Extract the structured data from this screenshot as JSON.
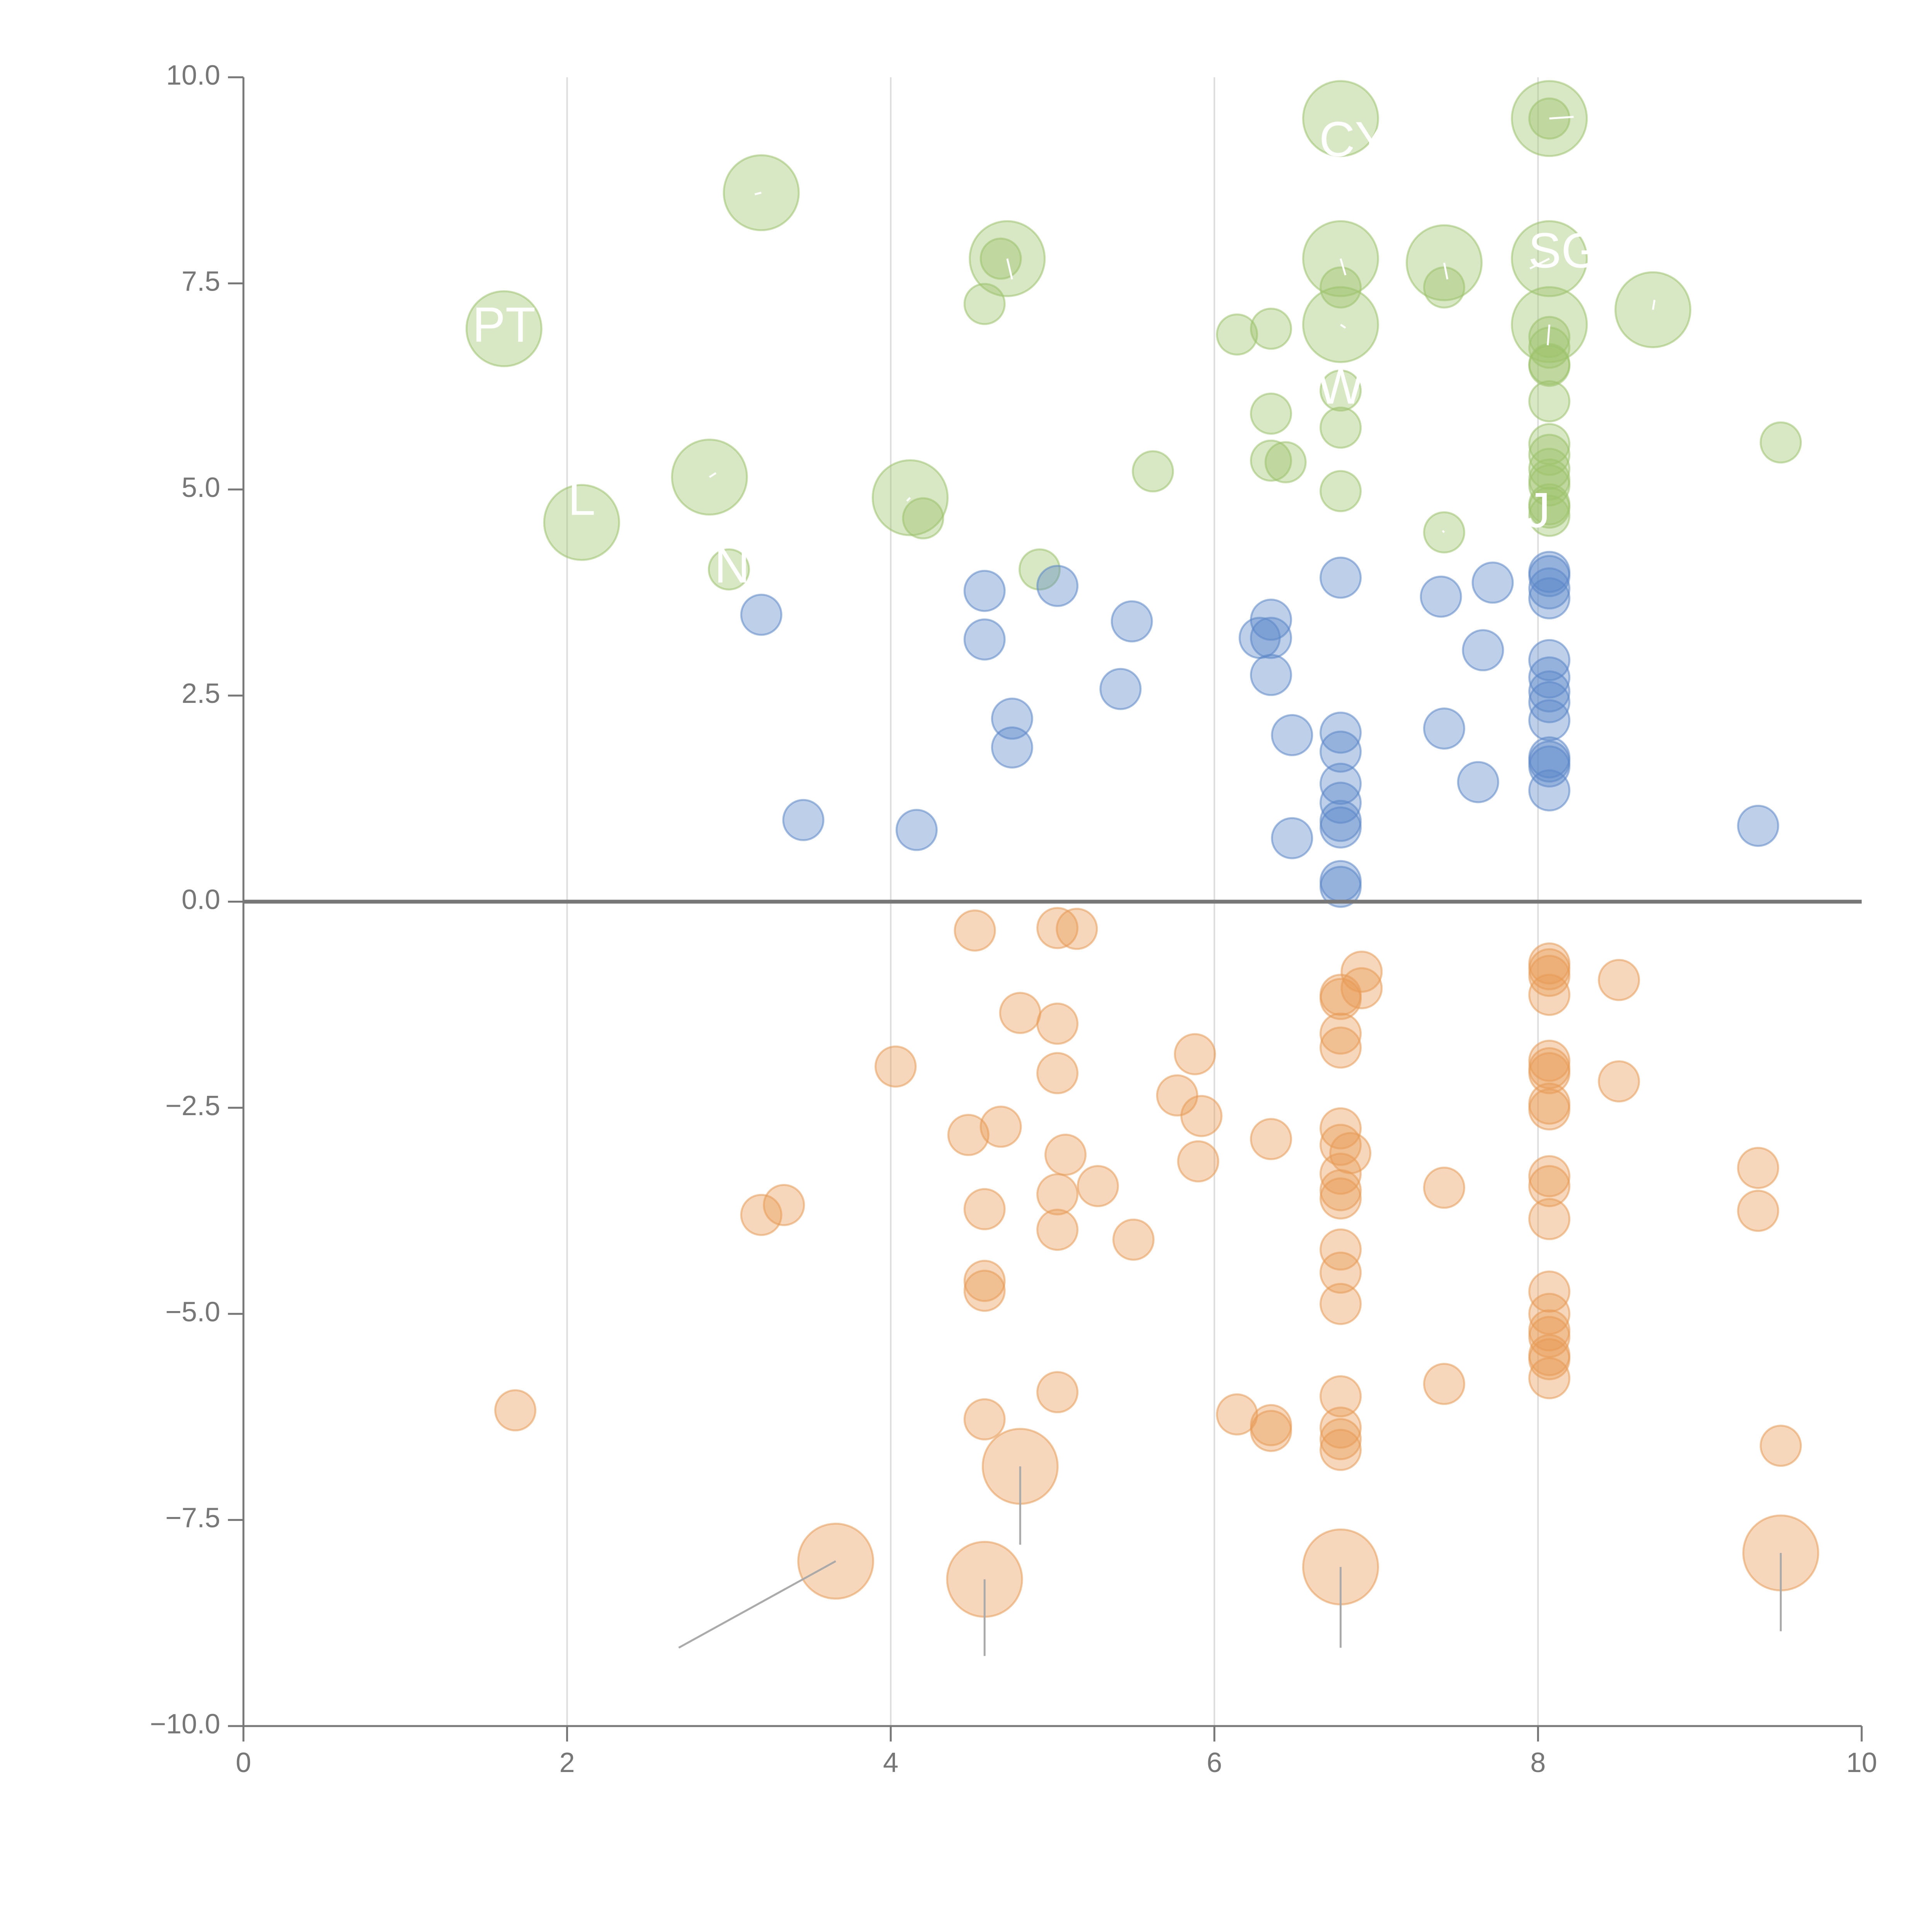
{
  "chart_data": {
    "type": "scatter",
    "title": "",
    "xlabel": "",
    "ylabel": "",
    "xlim": [
      0,
      10
    ],
    "ylim": [
      -10,
      10
    ],
    "x_ticks": [
      "0",
      "2",
      "4",
      "6",
      "8",
      "10"
    ],
    "y_ticks": [
      "10.0",
      "7.5",
      "5.0",
      "2.5",
      "0.0",
      "−2.5",
      "−5.0",
      "−7.5",
      "−10.0"
    ],
    "x_tick_values": [
      0,
      2,
      4,
      6,
      8,
      10
    ],
    "y_tick_values": [
      10,
      7.5,
      5,
      2.5,
      0,
      -2.5,
      -5,
      -7.5,
      -10
    ],
    "grid": "vertical lines at x ticks",
    "reference_line_y": 0,
    "colors": {
      "green": "#9dc36b",
      "blue": "#5b86c9",
      "orange": "#e89a55",
      "axis": "#777777",
      "grid": "#dddddd",
      "zero_line": "#777777",
      "leader": "#aaaaaa"
    },
    "series": [
      {
        "color": "green",
        "points": [
          [
            1.61,
            6.95,
            2
          ],
          [
            2.09,
            4.6,
            2
          ],
          [
            2.88,
            5.15,
            2
          ],
          [
            3.2,
            8.6,
            2
          ],
          [
            3.0,
            4.03,
            0
          ],
          [
            4.12,
            4.9,
            2
          ],
          [
            4.2,
            4.65,
            0
          ],
          [
            4.58,
            7.25,
            0
          ],
          [
            4.72,
            7.8,
            2
          ],
          [
            4.68,
            7.8,
            0
          ],
          [
            4.92,
            4.03,
            0
          ],
          [
            5.62,
            5.22,
            0
          ],
          [
            6.14,
            6.88,
            0
          ],
          [
            6.35,
            6.95,
            0
          ],
          [
            6.35,
            5.92,
            0
          ],
          [
            6.35,
            5.35,
            0
          ],
          [
            6.44,
            5.33,
            0
          ],
          [
            6.78,
            9.5,
            2
          ],
          [
            6.78,
            7.8,
            2
          ],
          [
            6.78,
            7.45,
            0
          ],
          [
            6.78,
            7.0,
            2
          ],
          [
            6.78,
            6.2,
            0
          ],
          [
            6.78,
            5.75,
            0
          ],
          [
            6.78,
            4.98,
            0
          ],
          [
            7.42,
            7.75,
            2
          ],
          [
            7.42,
            7.45,
            0
          ],
          [
            7.42,
            4.48,
            0
          ],
          [
            8.07,
            9.5,
            2
          ],
          [
            8.07,
            9.5,
            0
          ],
          [
            8.07,
            7.8,
            2
          ],
          [
            8.07,
            7.0,
            2
          ],
          [
            8.07,
            6.85,
            0
          ],
          [
            8.07,
            6.72,
            0
          ],
          [
            8.07,
            6.52,
            0
          ],
          [
            8.07,
            6.5,
            0
          ],
          [
            8.07,
            6.07,
            0
          ],
          [
            8.07,
            5.55,
            0
          ],
          [
            8.07,
            5.42,
            0
          ],
          [
            8.07,
            5.25,
            0
          ],
          [
            8.07,
            5.12,
            0
          ],
          [
            8.07,
            5.05,
            0
          ],
          [
            8.07,
            4.82,
            0
          ],
          [
            8.07,
            4.78,
            0
          ],
          [
            8.07,
            4.68,
            0
          ],
          [
            8.71,
            7.18,
            2
          ],
          [
            9.5,
            5.57,
            0
          ]
        ]
      },
      {
        "color": "blue",
        "points": [
          [
            3.2,
            3.48,
            0
          ],
          [
            3.46,
            0.99,
            0
          ],
          [
            4.16,
            0.87,
            0
          ],
          [
            4.58,
            3.77,
            0
          ],
          [
            4.58,
            3.18,
            0
          ],
          [
            4.75,
            2.22,
            0
          ],
          [
            4.75,
            1.87,
            0
          ],
          [
            5.03,
            3.83,
            0
          ],
          [
            5.42,
            2.58,
            0
          ],
          [
            5.49,
            3.4,
            0
          ],
          [
            6.28,
            3.2,
            0
          ],
          [
            6.35,
            3.42,
            0
          ],
          [
            6.35,
            3.2,
            0
          ],
          [
            6.35,
            2.75,
            0
          ],
          [
            6.48,
            2.02,
            0
          ],
          [
            6.48,
            0.77,
            0
          ],
          [
            6.78,
            3.93,
            0
          ],
          [
            6.78,
            2.05,
            0
          ],
          [
            6.78,
            1.82,
            0
          ],
          [
            6.78,
            1.43,
            0
          ],
          [
            6.78,
            1.2,
            0
          ],
          [
            6.78,
            0.98,
            0
          ],
          [
            6.78,
            0.9,
            0
          ],
          [
            6.78,
            0.25,
            0
          ],
          [
            6.78,
            0.18,
            0
          ],
          [
            7.4,
            3.7,
            0
          ],
          [
            7.42,
            2.1,
            0
          ],
          [
            7.63,
            1.45,
            0
          ],
          [
            7.66,
            3.05,
            0
          ],
          [
            7.72,
            3.87,
            0
          ],
          [
            8.07,
            4.0,
            0
          ],
          [
            8.07,
            3.95,
            0
          ],
          [
            8.07,
            3.8,
            0
          ],
          [
            8.07,
            3.68,
            0
          ],
          [
            8.07,
            2.93,
            0
          ],
          [
            8.07,
            2.72,
            0
          ],
          [
            8.07,
            2.55,
            0
          ],
          [
            8.07,
            2.42,
            0
          ],
          [
            8.07,
            2.2,
            0
          ],
          [
            8.07,
            1.75,
            0
          ],
          [
            8.07,
            1.7,
            0
          ],
          [
            8.07,
            1.64,
            0
          ],
          [
            8.07,
            1.35,
            0
          ],
          [
            9.36,
            0.92,
            0
          ]
        ]
      },
      {
        "color": "orange",
        "points": [
          [
            1.68,
            -6.17,
            0
          ],
          [
            3.2,
            -3.8,
            0
          ],
          [
            3.34,
            -3.68,
            0
          ],
          [
            3.66,
            -8.0,
            2
          ],
          [
            4.03,
            -2.0,
            0
          ],
          [
            4.48,
            -2.83,
            0
          ],
          [
            4.52,
            -0.35,
            0
          ],
          [
            4.58,
            -3.73,
            0
          ],
          [
            4.58,
            -4.6,
            0
          ],
          [
            4.58,
            -4.72,
            0
          ],
          [
            4.58,
            -6.28,
            0
          ],
          [
            4.58,
            -8.22,
            2
          ],
          [
            4.68,
            -2.73,
            0
          ],
          [
            4.8,
            -1.35,
            0
          ],
          [
            4.8,
            -6.85,
            2
          ],
          [
            5.03,
            -0.32,
            0
          ],
          [
            5.03,
            -1.48,
            0
          ],
          [
            5.03,
            -2.08,
            0
          ],
          [
            5.03,
            -3.55,
            0
          ],
          [
            5.03,
            -3.98,
            0
          ],
          [
            5.03,
            -5.95,
            0
          ],
          [
            5.08,
            -3.07,
            0
          ],
          [
            5.15,
            -0.33,
            0
          ],
          [
            5.28,
            -3.45,
            0
          ],
          [
            5.5,
            -4.1,
            0
          ],
          [
            5.77,
            -2.35,
            0
          ],
          [
            5.88,
            -1.85,
            0
          ],
          [
            5.9,
            -3.15,
            0
          ],
          [
            5.92,
            -2.6,
            0
          ],
          [
            6.14,
            -6.22,
            0
          ],
          [
            6.35,
            -2.88,
            0
          ],
          [
            6.35,
            -6.35,
            0
          ],
          [
            6.35,
            -6.42,
            0
          ],
          [
            6.78,
            -1.13,
            0
          ],
          [
            6.78,
            -1.18,
            0
          ],
          [
            6.78,
            -1.6,
            0
          ],
          [
            6.78,
            -1.77,
            0
          ],
          [
            6.78,
            -2.75,
            0
          ],
          [
            6.78,
            -2.95,
            0
          ],
          [
            6.78,
            -3.3,
            0
          ],
          [
            6.78,
            -3.5,
            0
          ],
          [
            6.78,
            -3.6,
            0
          ],
          [
            6.78,
            -4.22,
            0
          ],
          [
            6.78,
            -4.5,
            0
          ],
          [
            6.78,
            -4.88,
            0
          ],
          [
            6.78,
            -6.0,
            0
          ],
          [
            6.78,
            -6.38,
            0
          ],
          [
            6.78,
            -6.52,
            0
          ],
          [
            6.78,
            -6.65,
            0
          ],
          [
            6.78,
            -8.07,
            2
          ],
          [
            6.84,
            -3.05,
            0
          ],
          [
            6.91,
            -0.85,
            0
          ],
          [
            6.91,
            -1.05,
            0
          ],
          [
            7.42,
            -3.47,
            0
          ],
          [
            7.42,
            -5.85,
            0
          ],
          [
            8.07,
            -0.75,
            0
          ],
          [
            8.07,
            -0.82,
            0
          ],
          [
            8.07,
            -0.9,
            0
          ],
          [
            8.07,
            -1.13,
            0
          ],
          [
            8.07,
            -1.93,
            0
          ],
          [
            8.07,
            -2.02,
            0
          ],
          [
            8.07,
            -2.08,
            0
          ],
          [
            8.07,
            -2.45,
            0
          ],
          [
            8.07,
            -2.52,
            0
          ],
          [
            8.07,
            -3.33,
            0
          ],
          [
            8.07,
            -3.45,
            0
          ],
          [
            8.07,
            -3.85,
            0
          ],
          [
            8.07,
            -4.73,
            0
          ],
          [
            8.07,
            -5.0,
            0
          ],
          [
            8.07,
            -5.2,
            0
          ],
          [
            8.07,
            -5.28,
            0
          ],
          [
            8.07,
            -5.5,
            0
          ],
          [
            8.07,
            -5.55,
            0
          ],
          [
            8.07,
            -5.78,
            0
          ],
          [
            8.5,
            -0.95,
            0
          ],
          [
            8.5,
            -2.18,
            0
          ],
          [
            9.36,
            -3.23,
            0
          ],
          [
            9.36,
            -3.75,
            0
          ],
          [
            9.5,
            -6.6,
            0
          ],
          [
            9.5,
            -7.9,
            2
          ]
        ]
      }
    ],
    "annotations": [
      {
        "text": "PT",
        "x": 1.61,
        "y": 6.95
      },
      {
        "text": "CY",
        "x": 6.86,
        "y": 9.2
      },
      {
        "text": "SG",
        "x": 8.16,
        "y": 7.85
      },
      {
        "text": "W",
        "x": 6.78,
        "y": 6.2
      },
      {
        "text": "N",
        "x": 3.02,
        "y": 4.03
      },
      {
        "text": "L",
        "x": 2.09,
        "y": 4.85
      },
      {
        "text": "J",
        "x": 8.0,
        "y": 4.7
      }
    ],
    "annotation_leaders": [
      [
        3.2,
        8.6,
        3.16,
        8.58
      ],
      [
        4.72,
        7.8,
        4.75,
        7.55
      ],
      [
        6.78,
        9.5,
        6.78,
        9.5
      ],
      [
        6.78,
        7.8,
        6.81,
        7.6
      ],
      [
        6.78,
        7.0,
        6.81,
        6.96
      ],
      [
        7.42,
        7.75,
        7.44,
        7.55
      ],
      [
        8.07,
        9.5,
        8.22,
        9.52
      ],
      [
        8.07,
        7.8,
        7.95,
        7.68
      ],
      [
        8.07,
        7.0,
        8.06,
        6.75
      ],
      [
        8.71,
        7.18,
        8.72,
        7.3
      ],
      [
        2.88,
        5.15,
        2.92,
        5.2
      ],
      [
        4.12,
        4.9,
        4.1,
        4.86
      ],
      [
        7.42,
        4.48,
        7.41,
        4.5
      ],
      [
        3.66,
        -8.0,
        2.69,
        -9.05
      ],
      [
        4.58,
        -8.22,
        4.58,
        -9.15
      ],
      [
        4.8,
        -6.85,
        4.8,
        -7.8
      ],
      [
        6.78,
        -8.07,
        6.78,
        -9.05
      ],
      [
        9.5,
        -7.9,
        9.5,
        -8.85
      ]
    ]
  }
}
